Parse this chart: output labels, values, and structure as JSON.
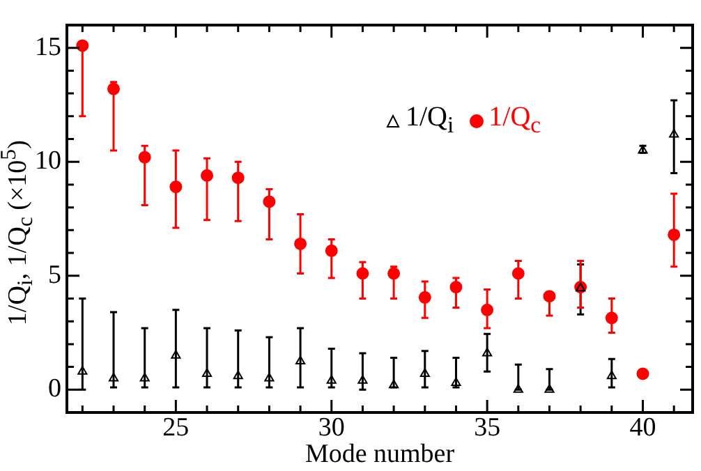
{
  "chart_data": {
    "type": "scatter",
    "xlabel": "Mode number",
    "ylabel": "1/Q$_{i}$, 1/Q$_{c}$  (×10$^{5}$)",
    "legend": "top right",
    "grid": false,
    "xlim": [
      21.5,
      41.6
    ],
    "ylim": [
      -1,
      16
    ],
    "xticks": [
      {
        "value": 22,
        "label": null
      },
      {
        "value": 23,
        "label": null
      },
      {
        "value": 24,
        "label": null
      },
      25,
      {
        "value": 26,
        "label": null
      },
      {
        "value": 27,
        "label": null
      },
      {
        "value": 28,
        "label": null
      },
      {
        "value": 29,
        "label": null
      },
      30,
      {
        "value": 31,
        "label": null
      },
      {
        "value": 32,
        "label": null
      },
      {
        "value": 33,
        "label": null
      },
      {
        "value": 34,
        "label": null
      },
      35,
      {
        "value": 36,
        "label": null
      },
      {
        "value": 37,
        "label": null
      },
      {
        "value": 38,
        "label": null
      },
      {
        "value": 39,
        "label": null
      },
      40,
      {
        "value": 41,
        "label": null
      }
    ],
    "yticks": [
      0,
      {
        "value": 1,
        "label": null
      },
      {
        "value": 2,
        "label": null
      },
      {
        "value": 3,
        "label": null
      },
      {
        "value": 4,
        "label": null
      },
      5,
      {
        "value": 6,
        "label": null
      },
      {
        "value": 7,
        "label": null
      },
      {
        "value": 8,
        "label": null
      },
      {
        "value": 9,
        "label": null
      },
      10,
      {
        "value": 11,
        "label": null
      },
      {
        "value": 12,
        "label": null
      },
      {
        "value": 13,
        "label": null
      },
      {
        "value": 14,
        "label": null
      },
      15
    ],
    "x": [
      22,
      23,
      24,
      25,
      26,
      27,
      28,
      29,
      30,
      31,
      32,
      33,
      34,
      35,
      36,
      37,
      38,
      39,
      40,
      41
    ],
    "series": [
      {
        "name": "1/Q$_{i}$",
        "color": "#000000",
        "marker": "triangle",
        "values": [
          0.8,
          0.5,
          0.5,
          1.5,
          0.7,
          0.6,
          0.5,
          1.25,
          0.4,
          0.4,
          0.2,
          0.7,
          0.3,
          1.6,
          0.0,
          0.0,
          4.45,
          0.6,
          10.5,
          11.2
        ],
        "errors": [
          [
            0,
            4.0
          ],
          [
            0.1,
            3.4
          ],
          [
            0.1,
            2.7
          ],
          [
            0.1,
            3.5
          ],
          [
            0.1,
            2.7
          ],
          [
            0.1,
            2.6
          ],
          [
            0.1,
            2.3
          ],
          [
            0.1,
            2.7
          ],
          [
            0.1,
            1.8
          ],
          [
            0,
            1.6
          ],
          [
            0.1,
            1.4
          ],
          [
            0.1,
            1.7
          ],
          [
            0.1,
            1.4
          ],
          [
            0.8,
            2.45
          ],
          [
            0,
            1.1
          ],
          [
            0,
            0.9
          ],
          [
            3.3,
            5.5
          ],
          [
            0.1,
            1.35
          ],
          [
            10.4,
            10.7
          ],
          [
            9.5,
            12.7
          ]
        ]
      },
      {
        "name": "1/Q$_{c}$",
        "color": "#ff0000",
        "marker": "circle",
        "values": [
          15.1,
          13.2,
          10.2,
          8.9,
          9.4,
          9.3,
          8.25,
          6.4,
          6.1,
          5.1,
          5.1,
          4.05,
          4.5,
          3.5,
          5.1,
          4.1,
          4.5,
          3.15,
          0.7,
          6.8
        ],
        "errors": [
          [
            12.0,
            15.2
          ],
          [
            10.5,
            13.5
          ],
          [
            8.1,
            10.7
          ],
          [
            7.1,
            10.5
          ],
          [
            7.45,
            10.15
          ],
          [
            7.4,
            10.0
          ],
          [
            6.6,
            8.8
          ],
          [
            5.1,
            7.7
          ],
          [
            4.9,
            6.6
          ],
          [
            4.0,
            5.6
          ],
          [
            4.0,
            5.4
          ],
          [
            3.15,
            4.75
          ],
          [
            3.6,
            4.9
          ],
          [
            2.7,
            4.4
          ],
          [
            4.0,
            5.65
          ],
          [
            3.25,
            4.2
          ],
          [
            3.6,
            5.65
          ],
          [
            2.5,
            4.0
          ],
          null,
          [
            5.4,
            8.6
          ]
        ]
      }
    ]
  }
}
